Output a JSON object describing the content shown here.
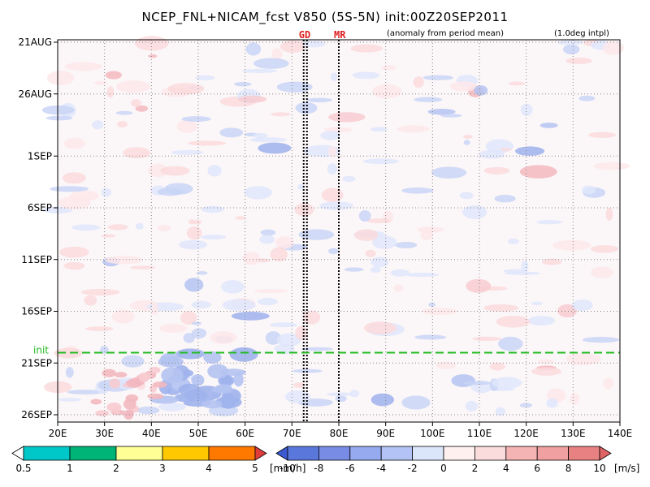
{
  "chart_data": {
    "type": "heatmap",
    "title": "NCEP_FNL+NICAM_fcst V850 (5S-5N) init:00Z20SEP2011",
    "subtitle_left": "(anomaly from period mean)",
    "subtitle_right": "(1.0deg intpl)",
    "xlim": [
      20,
      140
    ],
    "x_ticks": [
      "20E",
      "30E",
      "40E",
      "50E",
      "60E",
      "70E",
      "80E",
      "90E",
      "100E",
      "110E",
      "120E",
      "130E",
      "140E"
    ],
    "x_tick_values": [
      20,
      30,
      40,
      50,
      60,
      70,
      80,
      90,
      100,
      110,
      120,
      130,
      140
    ],
    "y_ticks": [
      "21AUG",
      "26AUG",
      "1SEP",
      "6SEP",
      "11SEP",
      "16SEP",
      "21SEP",
      "26SEP"
    ],
    "y_tick_days": [
      0,
      5,
      11,
      16,
      21,
      26,
      31,
      36
    ],
    "y_range_days": [
      0,
      36
    ],
    "init_label": "init",
    "init_day": 30,
    "vertical_markers": [
      {
        "label": "GD",
        "lons": [
          72.5,
          73.2
        ]
      },
      {
        "label": "MR",
        "lons": [
          80.0
        ]
      }
    ],
    "grid": true,
    "precip_legend": {
      "levels": [
        "0.5",
        "1",
        "2",
        "3",
        "4",
        "5"
      ],
      "unit": "[mm/h]",
      "colors": [
        "#ffffff",
        "#00c8c8",
        "#00b478",
        "#ffff96",
        "#ffc800",
        "#ff7800",
        "#e03c3c"
      ]
    },
    "wind_legend": {
      "levels": [
        "-10",
        "-8",
        "-6",
        "-4",
        "-2",
        "0",
        "2",
        "4",
        "6",
        "8",
        "10"
      ],
      "unit": "[m/s]",
      "colors": [
        "#3c5ad2",
        "#5a78dc",
        "#788ce6",
        "#96aaf0",
        "#b4c3f5",
        "#dce6fa",
        "#fff0f0",
        "#fadcdc",
        "#f5b4b4",
        "#f0a0a0",
        "#e88282",
        "#e06464"
      ]
    }
  }
}
